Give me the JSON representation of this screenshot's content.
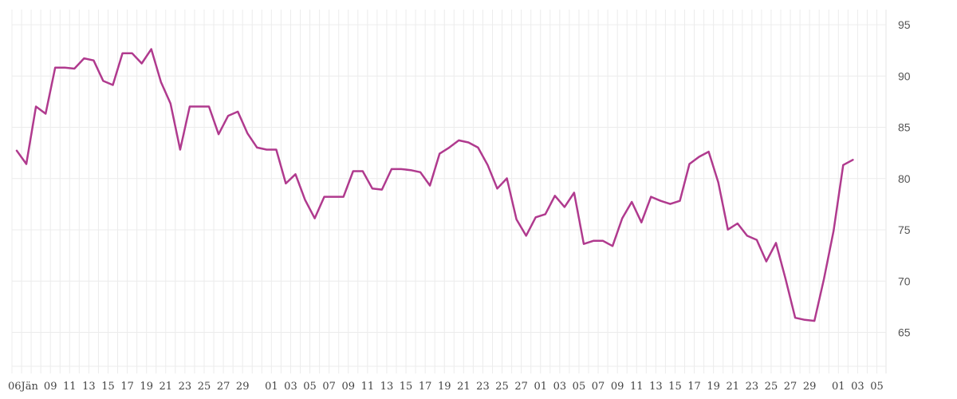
{
  "chart_data": {
    "type": "line",
    "title": "",
    "xlabel": "",
    "ylabel": "",
    "ylim": [
      61.7,
      96.5
    ],
    "grid": true,
    "legend": null,
    "line_color": "#B03A8E",
    "y_ticks": [
      65,
      70,
      75,
      80,
      85,
      90,
      95
    ],
    "x_tick_labels": [
      "06Jän",
      "09",
      "11",
      "13",
      "15",
      "17",
      "19",
      "21",
      "23",
      "25",
      "27",
      "29",
      "01",
      "03",
      "05",
      "07",
      "09",
      "11",
      "13",
      "15",
      "17",
      "19",
      "21",
      "23",
      "25",
      "27",
      "01",
      "03",
      "05",
      "07",
      "09",
      "11",
      "13",
      "15",
      "17",
      "19",
      "21",
      "23",
      "25",
      "27",
      "29",
      "01",
      "03",
      "05"
    ],
    "x_tick_day_index": [
      1,
      4,
      6,
      8,
      10,
      12,
      14,
      16,
      18,
      20,
      22,
      24,
      27,
      29,
      31,
      33,
      35,
      37,
      39,
      41,
      43,
      45,
      47,
      49,
      51,
      53,
      55,
      57,
      59,
      61,
      63,
      65,
      67,
      69,
      71,
      73,
      75,
      77,
      79,
      81,
      83,
      86,
      88,
      90
    ],
    "series": [
      {
        "name": "value",
        "values": [
          82.8,
          81.5,
          87.1,
          86.4,
          90.9,
          90.9,
          90.8,
          91.8,
          91.6,
          89.6,
          89.2,
          92.3,
          92.3,
          91.3,
          92.7,
          89.5,
          87.4,
          82.9,
          87.1,
          87.1,
          87.1,
          84.4,
          86.2,
          86.6,
          84.5,
          83.1,
          82.9,
          82.9,
          79.6,
          80.5,
          78.0,
          76.2,
          78.3,
          78.3,
          78.3,
          80.8,
          80.8,
          79.1,
          79.0,
          81.0,
          81.0,
          80.9,
          80.7,
          79.4,
          82.5,
          83.1,
          83.8,
          83.6,
          83.1,
          81.4,
          79.1,
          80.1,
          76.1,
          74.5,
          76.3,
          76.6,
          78.4,
          77.3,
          78.7,
          73.7,
          74.0,
          74.0,
          73.5,
          76.2,
          77.8,
          75.8,
          78.3,
          77.9,
          77.6,
          77.9,
          81.5,
          82.2,
          82.7,
          79.7,
          75.1,
          75.7,
          74.5,
          74.1,
          72.0,
          73.8,
          70.3,
          66.5,
          66.3,
          66.2,
          70.3,
          75.0,
          81.4,
          81.9
        ]
      }
    ]
  }
}
